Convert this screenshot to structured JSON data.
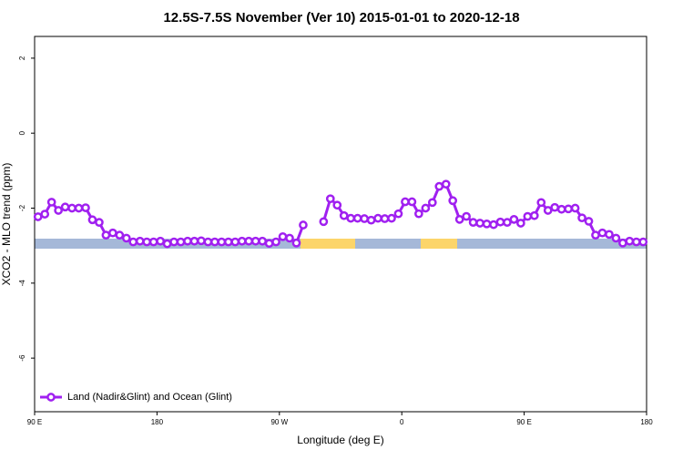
{
  "chart_data": {
    "type": "line",
    "title": "12.5S-7.5S November (Ver 10)   2015-01-01 to 2020-12-18",
    "x_label": "Longitude (deg E)",
    "y_label": "XCO2 - MLO trend (ppm)",
    "xlim": [
      90,
      540
    ],
    "xticks": [
      {
        "value": 90,
        "label": "90 E"
      },
      180,
      {
        "value": 270,
        "label": "90 W"
      },
      {
        "value": 360,
        "label": "0"
      },
      {
        "value": 450,
        "label": "90 E"
      },
      {
        "value": 540,
        "label": "180"
      }
    ],
    "ylim": [
      -7.43,
      2.58
    ],
    "yticks": [
      2,
      0,
      -2,
      -4,
      -6
    ],
    "legend": "bottom-left",
    "x": [
      92.5,
      97.5,
      102.5,
      107.5,
      112.5,
      117.5,
      122.5,
      127.5,
      132.5,
      137.5,
      142.5,
      147.5,
      152.5,
      157.5,
      162.5,
      167.5,
      172.5,
      177.5,
      182.5,
      187.5,
      192.5,
      197.5,
      202.5,
      207.5,
      212.5,
      217.5,
      222.5,
      227.5,
      232.5,
      237.5,
      242.5,
      247.5,
      252.5,
      257.5,
      262.5,
      267.5,
      272.5,
      277.5,
      282.5,
      287.5,
      292.5,
      297.5,
      302.5,
      307.5,
      312.5,
      317.5,
      322.5,
      327.5,
      332.5,
      337.5,
      342.5,
      347.5,
      352.5,
      357.5,
      362.5,
      367.5,
      372.5,
      377.5,
      382.5,
      387.5,
      392.5,
      397.5,
      402.5,
      407.5,
      412.5,
      417.5,
      422.5,
      427.5,
      432.5,
      437.5,
      442.5,
      447.5,
      452.5,
      457.5,
      462.5,
      467.5,
      472.5,
      477.5,
      482.5,
      487.5,
      492.5,
      497.5,
      502.5,
      507.5,
      512.5,
      517.5,
      522.5,
      527.5,
      532.5,
      537.5
    ],
    "series": [
      {
        "name": "Land (Nadir&Glint) and Ocean (Glint)",
        "color": "#a020f0",
        "values": [
          -2.23,
          -2.16,
          -1.84,
          -2.06,
          -1.97,
          -2.0,
          -2.0,
          -1.99,
          -2.31,
          -2.38,
          -2.72,
          -2.66,
          -2.72,
          -2.8,
          -2.9,
          -2.88,
          -2.9,
          -2.9,
          -2.88,
          -2.95,
          -2.9,
          -2.9,
          -2.88,
          -2.88,
          -2.87,
          -2.9,
          -2.9,
          -2.9,
          -2.9,
          -2.9,
          -2.88,
          -2.88,
          -2.88,
          -2.88,
          -2.94,
          -2.9,
          -2.76,
          -2.8,
          -2.93,
          -2.45,
          null,
          null,
          -2.36,
          -1.75,
          -1.92,
          -2.2,
          -2.27,
          -2.27,
          -2.28,
          -2.32,
          -2.27,
          -2.28,
          -2.27,
          -2.15,
          -1.83,
          -1.83,
          -2.15,
          -2.0,
          -1.85,
          -1.42,
          -1.36,
          -1.8,
          -2.3,
          -2.22,
          -2.38,
          -2.4,
          -2.42,
          -2.44,
          -2.37,
          -2.38,
          -2.3,
          -2.4,
          -2.22,
          -2.2,
          -1.85,
          -2.06,
          -1.98,
          -2.03,
          -2.02,
          -2.0,
          -2.26,
          -2.35,
          -2.72,
          -2.66,
          -2.7,
          -2.8,
          -2.93,
          -2.88,
          -2.9,
          -2.9
        ]
      }
    ]
  }
}
